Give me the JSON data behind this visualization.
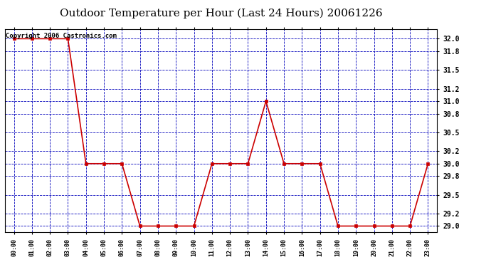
{
  "title": "Outdoor Temperature per Hour (Last 24 Hours) 20061226",
  "copyright_text": "Copyright 2006 Castronics.com",
  "hours": [
    "00:00",
    "01:00",
    "02:00",
    "03:00",
    "04:00",
    "05:00",
    "06:00",
    "07:00",
    "08:00",
    "09:00",
    "10:00",
    "11:00",
    "12:00",
    "13:00",
    "14:00",
    "15:00",
    "16:00",
    "17:00",
    "18:00",
    "19:00",
    "20:00",
    "21:00",
    "22:00",
    "23:00"
  ],
  "temps": [
    32.0,
    32.0,
    32.0,
    32.0,
    30.0,
    30.0,
    30.0,
    29.0,
    29.0,
    29.0,
    29.0,
    30.0,
    30.0,
    30.0,
    31.0,
    30.0,
    30.0,
    30.0,
    29.0,
    29.0,
    29.0,
    29.0,
    29.0,
    30.0
  ],
  "ylim_min": 28.9,
  "ylim_max": 32.15,
  "yticks": [
    29.0,
    29.2,
    29.5,
    29.8,
    30.0,
    30.2,
    30.5,
    30.8,
    31.0,
    31.2,
    31.5,
    31.8,
    32.0
  ],
  "line_color": "#cc0000",
  "marker_color": "#cc0000",
  "background_color": "#ffffff",
  "grid_color": "#0000bb",
  "title_fontsize": 11,
  "copyright_fontsize": 6.5,
  "tick_label_color": "#000000"
}
